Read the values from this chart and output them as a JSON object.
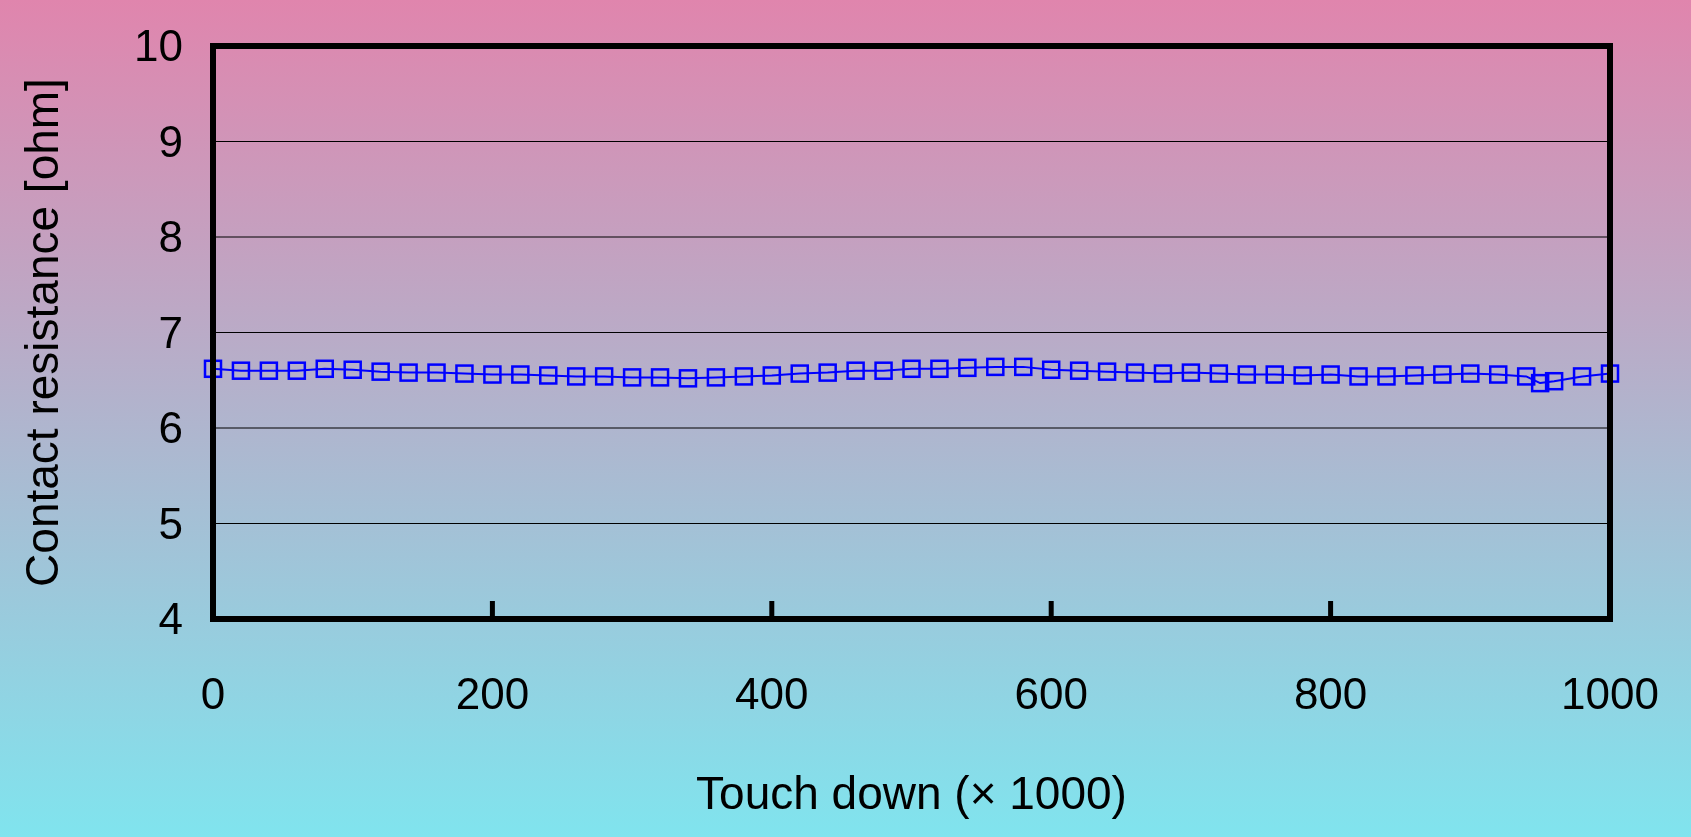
{
  "chart_data": {
    "type": "line",
    "xlabel": "Touch down (× 1000)",
    "ylabel": "Contact resistance [ohm]",
    "x": [
      0,
      20,
      40,
      60,
      80,
      100,
      120,
      140,
      160,
      180,
      200,
      220,
      240,
      260,
      280,
      300,
      320,
      340,
      360,
      380,
      400,
      420,
      440,
      460,
      480,
      500,
      520,
      540,
      560,
      580,
      600,
      620,
      640,
      660,
      680,
      700,
      720,
      740,
      760,
      780,
      800,
      820,
      840,
      860,
      880,
      900,
      920,
      940,
      950,
      960,
      980,
      1000
    ],
    "series": [
      {
        "color": "#0000ff",
        "values": [
          6.62,
          6.6,
          6.6,
          6.6,
          6.62,
          6.61,
          6.59,
          6.58,
          6.58,
          6.57,
          6.56,
          6.56,
          6.55,
          6.54,
          6.54,
          6.53,
          6.53,
          6.52,
          6.53,
          6.54,
          6.55,
          6.57,
          6.58,
          6.6,
          6.6,
          6.62,
          6.62,
          6.63,
          6.64,
          6.64,
          6.61,
          6.6,
          6.59,
          6.58,
          6.57,
          6.58,
          6.57,
          6.56,
          6.56,
          6.55,
          6.56,
          6.54,
          6.54,
          6.55,
          6.56,
          6.57,
          6.56,
          6.54,
          6.47,
          6.49,
          6.54,
          6.57
        ]
      }
    ],
    "xlim": [
      0,
      1000
    ],
    "xticks": [
      0,
      200,
      400,
      600,
      800,
      1000
    ],
    "ylim": [
      4,
      10
    ],
    "yticks": [
      4,
      5,
      6,
      7,
      8,
      9,
      10
    ],
    "grid": "y",
    "marker": "square",
    "line_style": "solid"
  }
}
